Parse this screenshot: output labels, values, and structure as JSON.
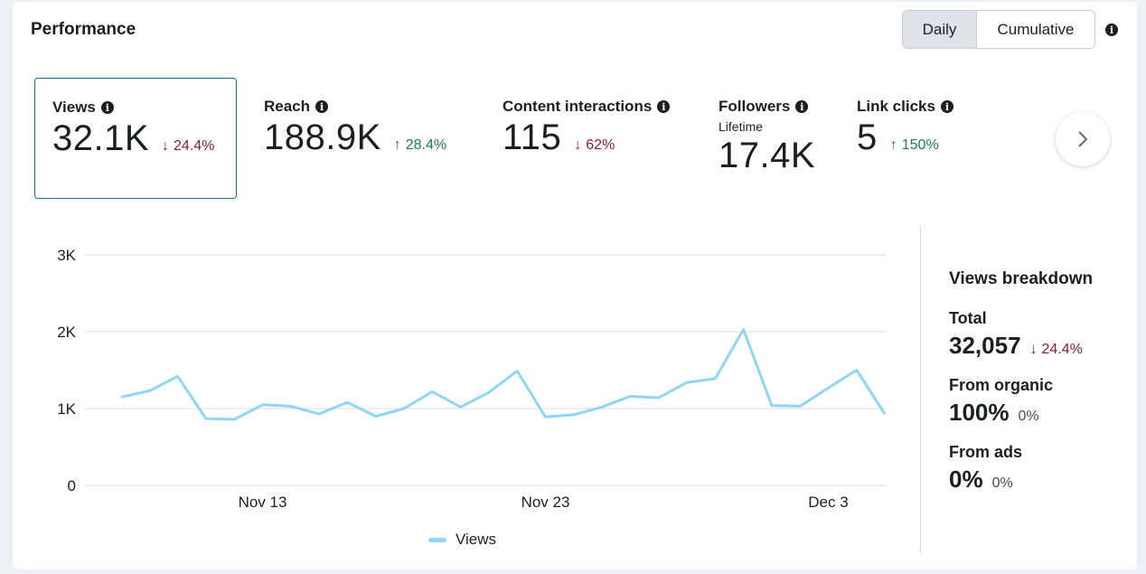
{
  "header": {
    "title": "Performance",
    "toggle": {
      "daily": "Daily",
      "cumulative": "Cumulative"
    }
  },
  "metrics": [
    {
      "label": "Views",
      "value": "32.1K",
      "delta": "24.4%",
      "trend": "down"
    },
    {
      "label": "Reach",
      "value": "188.9K",
      "delta": "28.4%",
      "trend": "up"
    },
    {
      "label": "Content interactions",
      "value": "115",
      "delta": "62%",
      "trend": "down"
    },
    {
      "label": "Followers",
      "sublabel": "Lifetime",
      "value": "17.4K"
    },
    {
      "label": "Link clicks",
      "value": "5",
      "delta": "150%",
      "trend": "up"
    }
  ],
  "colors": {
    "line": "#8fd6f5",
    "down": "#8b1d2c",
    "up": "#1f7a4d",
    "selected_border": "#1b6c8f"
  },
  "chart_data": {
    "type": "line",
    "x": [
      "Nov 8",
      "Nov 9",
      "Nov 10",
      "Nov 11",
      "Nov 12",
      "Nov 13",
      "Nov 14",
      "Nov 15",
      "Nov 16",
      "Nov 17",
      "Nov 18",
      "Nov 19",
      "Nov 20",
      "Nov 21",
      "Nov 22",
      "Nov 23",
      "Nov 24",
      "Nov 25",
      "Nov 26",
      "Nov 27",
      "Nov 28",
      "Nov 29",
      "Nov 30",
      "Dec 1",
      "Dec 2",
      "Dec 3",
      "Dec 4",
      "Dec 5"
    ],
    "series": [
      {
        "name": "Views",
        "values": [
          1150,
          1230,
          1420,
          870,
          860,
          1050,
          1030,
          930,
          1080,
          900,
          1000,
          1220,
          1020,
          1210,
          1490,
          890,
          920,
          1020,
          1160,
          1140,
          1340,
          1390,
          2030,
          1040,
          1030,
          1270,
          1500,
          930
        ]
      }
    ],
    "ylim": [
      0,
      3000
    ],
    "yticks": [
      0,
      1000,
      2000,
      3000
    ],
    "ytick_labels": [
      "0",
      "1K",
      "2K",
      "3K"
    ],
    "xticks": [
      {
        "index": 5,
        "label": "Nov 13"
      },
      {
        "index": 15,
        "label": "Nov 23"
      },
      {
        "index": 25,
        "label": "Dec 3"
      }
    ],
    "legend": "bottom-center"
  },
  "breakdown": {
    "title": "Views breakdown",
    "items": [
      {
        "label": "Total",
        "value": "32,057",
        "delta": "24.4%",
        "trend": "down"
      },
      {
        "label": "From organic",
        "value": "100%",
        "delta": "0%",
        "trend": "neutral"
      },
      {
        "label": "From ads",
        "value": "0%",
        "delta": "0%",
        "trend": "neutral"
      }
    ]
  }
}
